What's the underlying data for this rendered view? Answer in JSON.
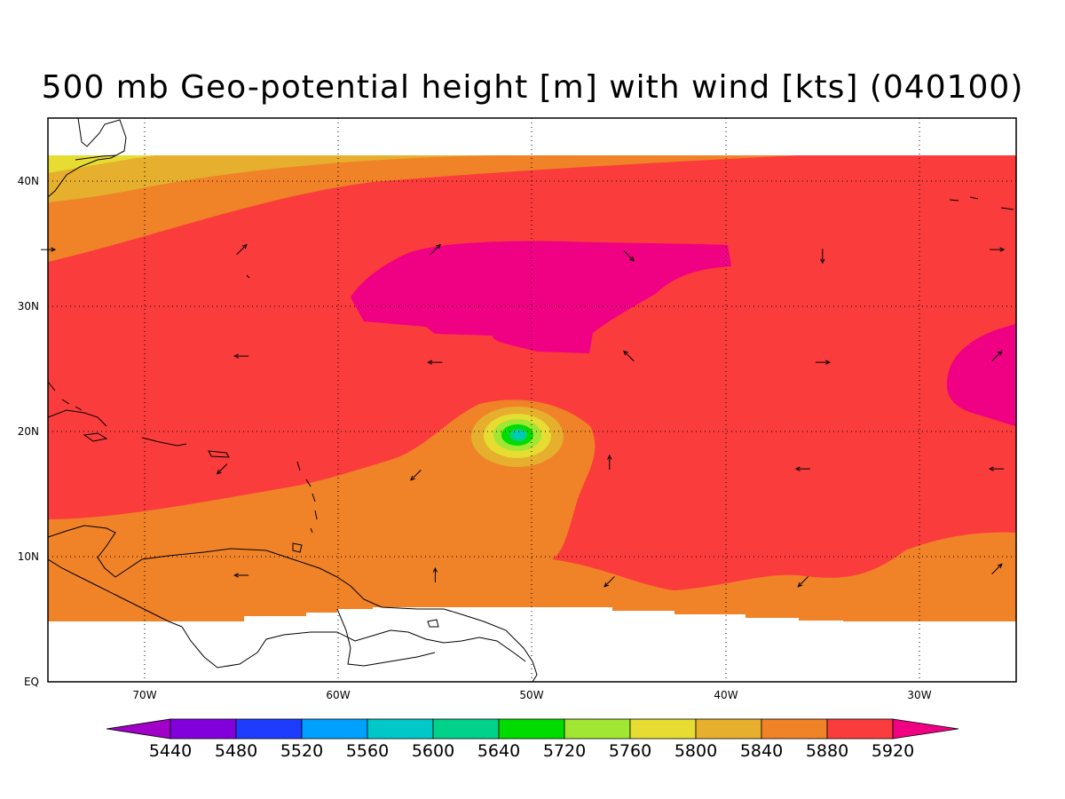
{
  "title": "500 mb Geo-potential height [m] with wind [kts] (040100)",
  "colors": {
    "c5440": "#a000c8",
    "c5480": "#8200dc",
    "c5520": "#1e3cff",
    "c5560": "#00a0ff",
    "c5600": "#00c8c8",
    "c5640": "#00d28c",
    "c5720": "#00dc00",
    "c5760": "#a0e632",
    "c5800": "#e6dc32",
    "c5840": "#e6af2d",
    "c5880": "#f08228",
    "c5920": "#fa3c3c",
    "c_over": "#f00082"
  },
  "map": {
    "lon_range": [
      -75,
      -25
    ],
    "lat_range": [
      0,
      45
    ],
    "lon_labels": [
      "70W",
      "60W",
      "50W",
      "40W",
      "30W"
    ],
    "lat_labels": [
      "EQ",
      "10N",
      "20N",
      "30N",
      "40N"
    ]
  },
  "colorbar": {
    "labels": [
      "5440",
      "5480",
      "5520",
      "5560",
      "5600",
      "5640",
      "5720",
      "5760",
      "5800",
      "5840",
      "5880",
      "5920"
    ]
  },
  "wind_arrows": [
    {
      "lon": -75,
      "lat": 34.5,
      "dir": "E"
    },
    {
      "lon": -65,
      "lat": 34.5,
      "dir": "NE"
    },
    {
      "lon": -55,
      "lat": 34.5,
      "dir": "NE"
    },
    {
      "lon": -45,
      "lat": 34.0,
      "dir": "SE"
    },
    {
      "lon": -35,
      "lat": 34.0,
      "dir": "S"
    },
    {
      "lon": -26,
      "lat": 34.5,
      "dir": "E"
    },
    {
      "lon": -65,
      "lat": 26.0,
      "dir": "W"
    },
    {
      "lon": -55,
      "lat": 25.5,
      "dir": "W"
    },
    {
      "lon": -45,
      "lat": 26.0,
      "dir": "NW"
    },
    {
      "lon": -35,
      "lat": 25.5,
      "dir": "E"
    },
    {
      "lon": -26,
      "lat": 26.0,
      "dir": "NE"
    },
    {
      "lon": -66,
      "lat": 17.0,
      "dir": "SW"
    },
    {
      "lon": -56,
      "lat": 16.5,
      "dir": "SW"
    },
    {
      "lon": -46,
      "lat": 17.5,
      "dir": "N"
    },
    {
      "lon": -36,
      "lat": 17.0,
      "dir": "W"
    },
    {
      "lon": -26,
      "lat": 17.0,
      "dir": "W"
    },
    {
      "lon": -65,
      "lat": 8.5,
      "dir": "W"
    },
    {
      "lon": -55,
      "lat": 8.5,
      "dir": "N"
    },
    {
      "lon": -46,
      "lat": 8.0,
      "dir": "SW"
    },
    {
      "lon": -36,
      "lat": 8.0,
      "dir": "SW"
    },
    {
      "lon": -26,
      "lat": 9.0,
      "dir": "NE"
    }
  ]
}
